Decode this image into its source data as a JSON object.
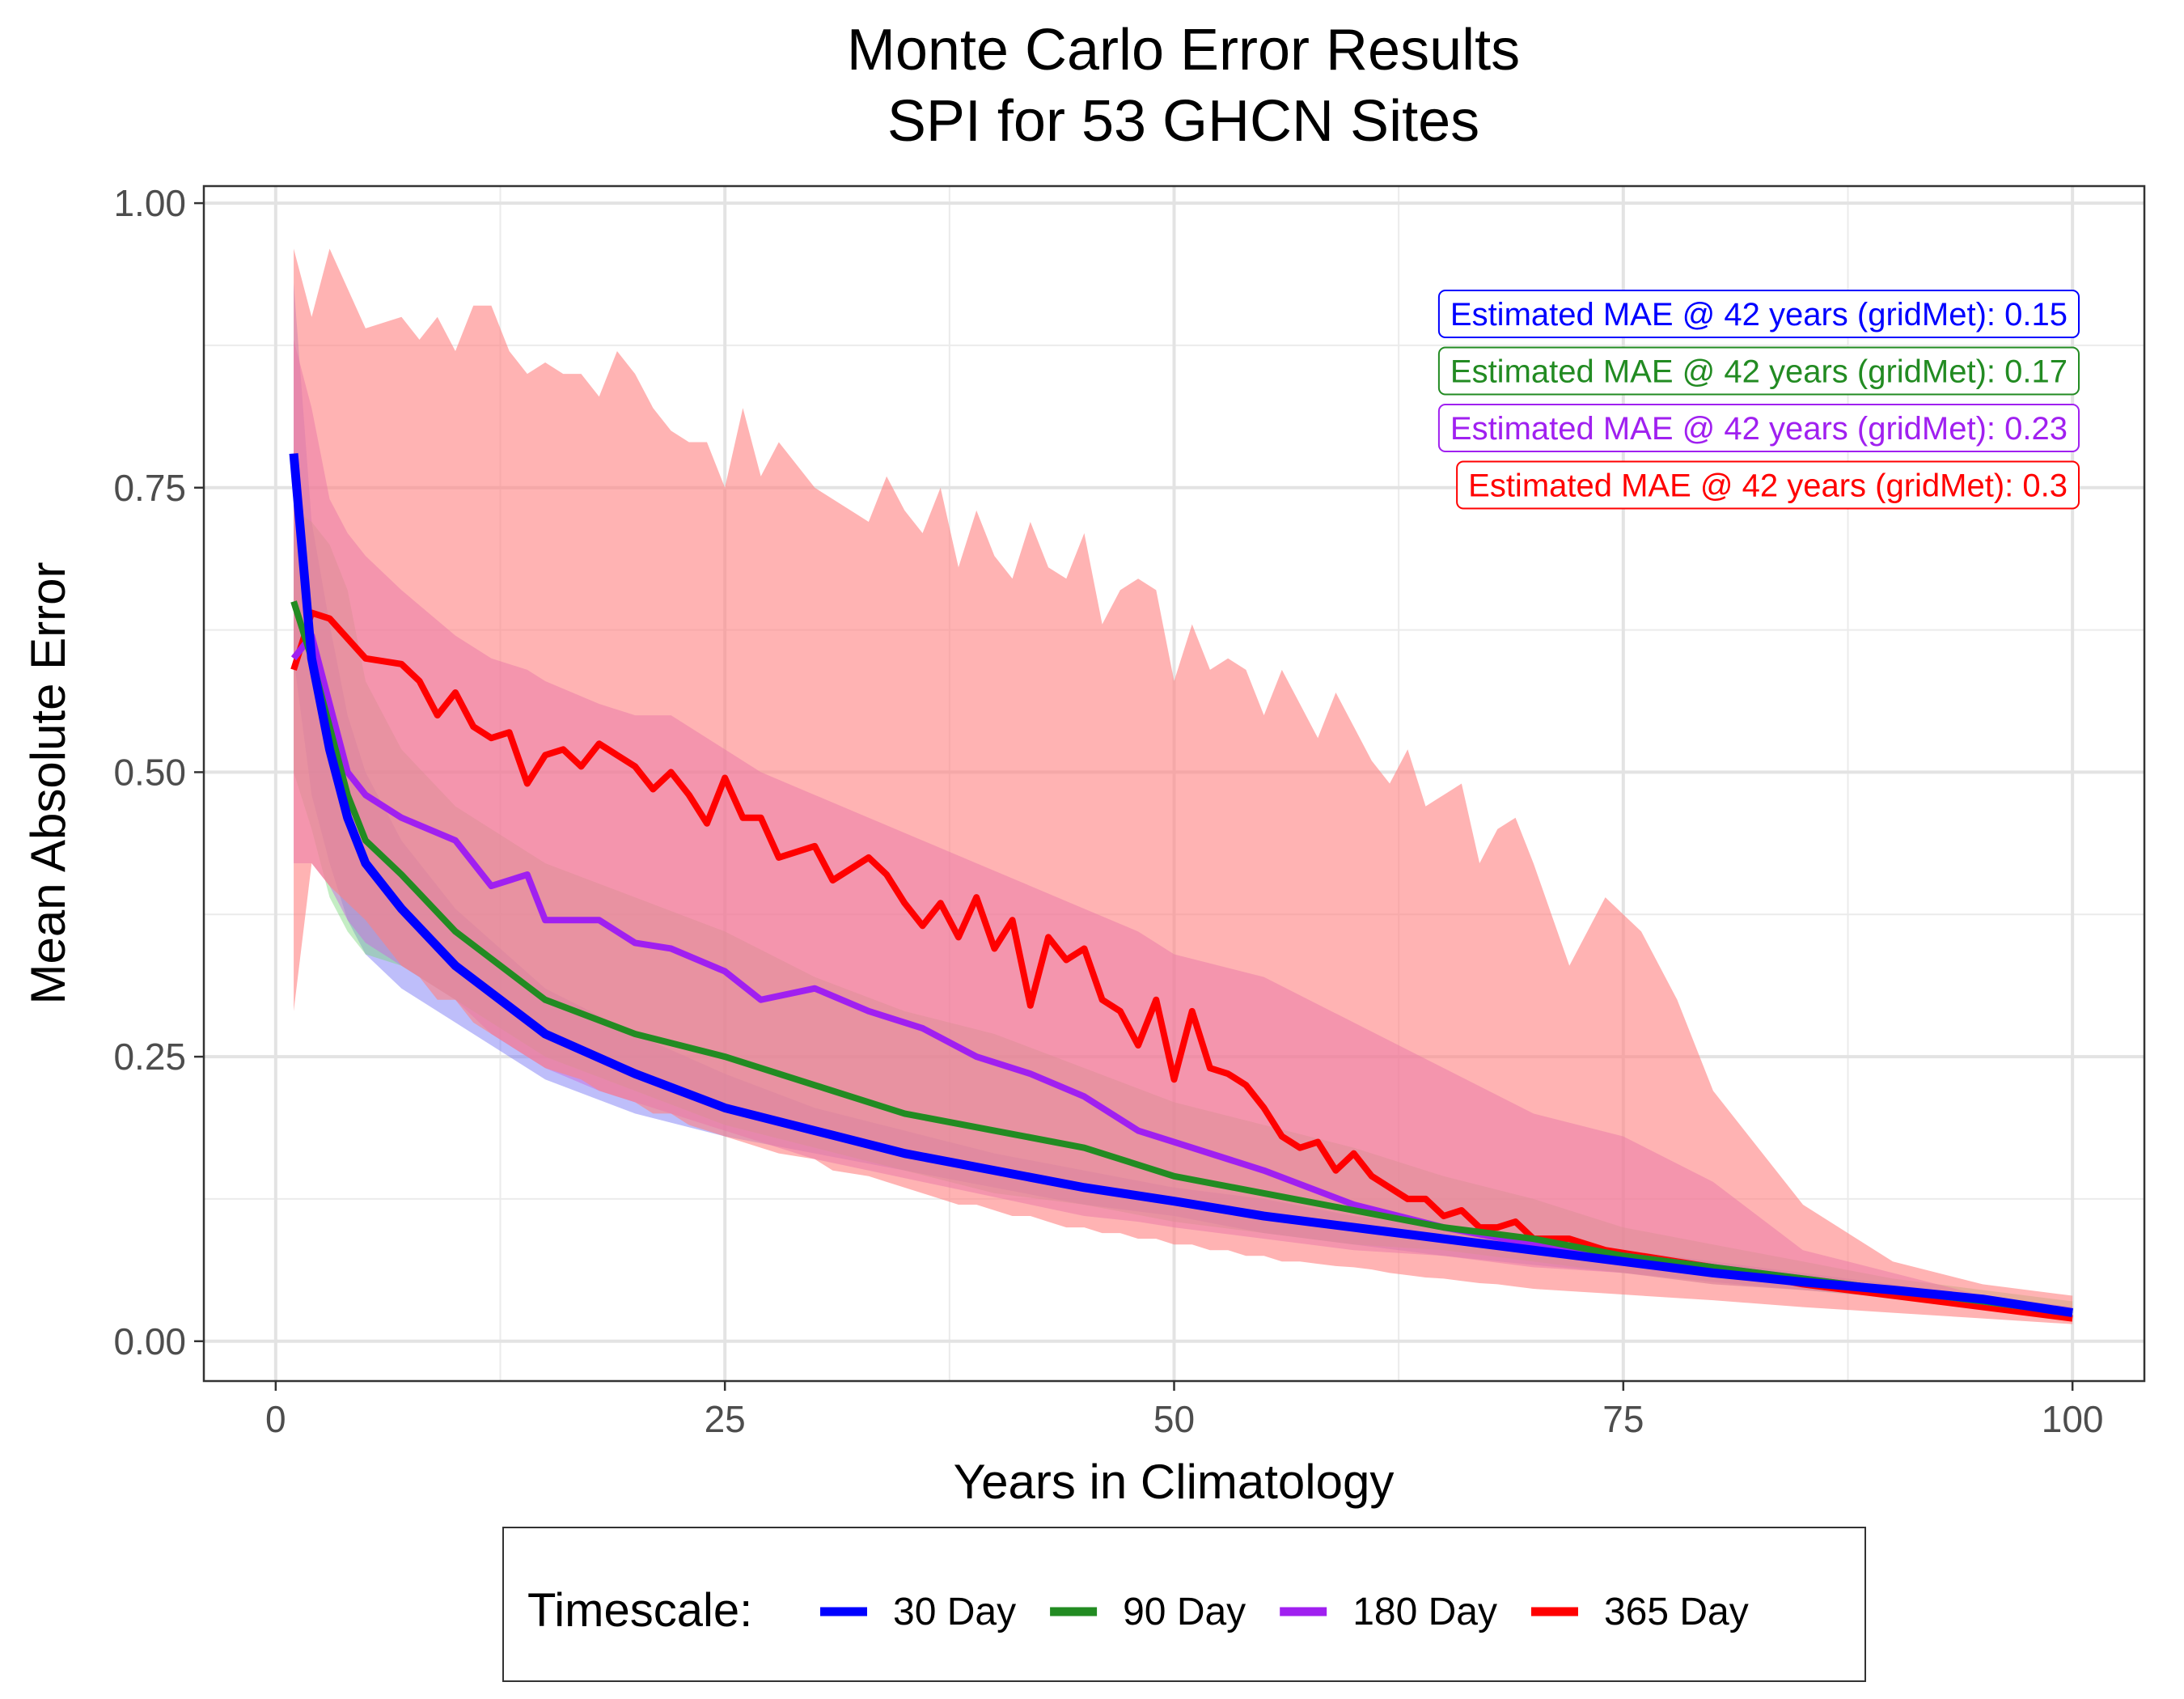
{
  "chart_data": {
    "type": "line",
    "title_line1": "Monte Carlo Error Results",
    "title_line2": "SPI for 53 GHCN Sites",
    "xlabel": "Years in Climatology",
    "ylabel": "Mean Absolute Error",
    "xlim": [
      -4,
      104
    ],
    "ylim": [
      -0.035,
      1.015
    ],
    "xticks": [
      0,
      25,
      50,
      75,
      100
    ],
    "xtick_labels": [
      "0",
      "25",
      "50",
      "75",
      "100"
    ],
    "yticks": [
      0,
      0.25,
      0.5,
      0.75,
      1.0
    ],
    "ytick_labels": [
      "0.00",
      "0.25",
      "0.50",
      "0.75",
      "1.00"
    ],
    "grid": true,
    "legend_title": "Timescale:",
    "legend_position": "bottom",
    "annotations": [
      {
        "text": "Estimated MAE @ 42 years (gridMet): 0.15",
        "color": "#0000ff"
      },
      {
        "text": "Estimated MAE @ 42 years (gridMet): 0.17",
        "color": "#228b22"
      },
      {
        "text": "Estimated MAE @ 42 years (gridMet): 0.23",
        "color": "#a020f0"
      },
      {
        "text": "Estimated MAE @ 42 years (gridMet): 0.3",
        "color": "#ff0000"
      }
    ],
    "series": [
      {
        "name": "30 Day",
        "line_color": "#0000ff",
        "band_color": "#6f6ff5",
        "band_opacity": 0.45,
        "x": [
          1,
          2,
          3,
          4,
          5,
          7,
          10,
          15,
          20,
          25,
          30,
          35,
          40,
          45,
          50,
          55,
          60,
          65,
          70,
          75,
          80,
          85,
          90,
          95,
          100
        ],
        "mean": [
          0.78,
          0.6,
          0.52,
          0.46,
          0.42,
          0.38,
          0.33,
          0.27,
          0.235,
          0.205,
          0.185,
          0.165,
          0.15,
          0.135,
          0.123,
          0.11,
          0.1,
          0.09,
          0.08,
          0.07,
          0.06,
          0.052,
          0.045,
          0.037,
          0.025
        ],
        "lower": [
          0.6,
          0.48,
          0.42,
          0.37,
          0.34,
          0.31,
          0.28,
          0.23,
          0.2,
          0.18,
          0.165,
          0.15,
          0.135,
          0.12,
          0.11,
          0.095,
          0.085,
          0.075,
          0.067,
          0.06,
          0.052,
          0.045,
          0.038,
          0.03,
          0.02
        ],
        "upper": [
          0.93,
          0.72,
          0.63,
          0.55,
          0.5,
          0.44,
          0.38,
          0.31,
          0.27,
          0.235,
          0.205,
          0.185,
          0.165,
          0.15,
          0.135,
          0.125,
          0.11,
          0.1,
          0.09,
          0.08,
          0.07,
          0.06,
          0.05,
          0.04,
          0.03
        ]
      },
      {
        "name": "90 Day",
        "line_color": "#228b22",
        "band_color": "#7cd67c",
        "band_opacity": 0.45,
        "x": [
          1,
          2,
          3,
          4,
          5,
          7,
          10,
          15,
          20,
          25,
          30,
          35,
          40,
          45,
          50,
          55,
          60,
          65,
          70,
          75,
          80,
          85,
          90,
          95,
          100
        ],
        "mean": [
          0.65,
          0.6,
          0.54,
          0.48,
          0.44,
          0.41,
          0.36,
          0.3,
          0.27,
          0.25,
          0.225,
          0.2,
          0.185,
          0.17,
          0.145,
          0.13,
          0.115,
          0.1,
          0.09,
          0.075,
          0.065,
          0.055,
          0.045,
          0.035,
          0.025
        ],
        "lower": [
          0.5,
          0.45,
          0.39,
          0.36,
          0.34,
          0.33,
          0.3,
          0.25,
          0.22,
          0.19,
          0.17,
          0.15,
          0.13,
          0.12,
          0.105,
          0.095,
          0.085,
          0.08,
          0.07,
          0.06,
          0.05,
          0.045,
          0.038,
          0.03,
          0.02
        ],
        "upper": [
          0.73,
          0.72,
          0.7,
          0.66,
          0.58,
          0.52,
          0.47,
          0.42,
          0.39,
          0.36,
          0.32,
          0.29,
          0.27,
          0.24,
          0.21,
          0.19,
          0.17,
          0.145,
          0.125,
          0.1,
          0.085,
          0.07,
          0.055,
          0.045,
          0.035
        ]
      },
      {
        "name": "180 Day",
        "line_color": "#a020f0",
        "band_color": "#c86be0",
        "band_opacity": 0.5,
        "x": [
          1,
          2,
          3,
          4,
          5,
          7,
          10,
          12,
          14,
          15,
          18,
          20,
          22,
          25,
          27,
          30,
          33,
          36,
          39,
          42,
          45,
          48,
          50,
          55,
          60,
          65,
          70,
          75,
          80,
          85,
          90,
          95,
          100
        ],
        "mean": [
          0.6,
          0.62,
          0.56,
          0.5,
          0.48,
          0.46,
          0.44,
          0.4,
          0.41,
          0.37,
          0.37,
          0.35,
          0.345,
          0.325,
          0.3,
          0.31,
          0.29,
          0.275,
          0.25,
          0.235,
          0.215,
          0.185,
          0.175,
          0.15,
          0.12,
          0.1,
          0.085,
          0.075,
          0.065,
          0.055,
          0.045,
          0.035,
          0.025
        ],
        "lower": [
          0.42,
          0.42,
          0.4,
          0.37,
          0.35,
          0.33,
          0.3,
          0.27,
          0.25,
          0.24,
          0.22,
          0.21,
          0.2,
          0.185,
          0.175,
          0.16,
          0.15,
          0.14,
          0.13,
          0.12,
          0.11,
          0.105,
          0.1,
          0.09,
          0.08,
          0.075,
          0.065,
          0.06,
          0.05,
          0.045,
          0.04,
          0.03,
          0.02
        ],
        "upper": [
          0.88,
          0.82,
          0.74,
          0.71,
          0.69,
          0.66,
          0.62,
          0.6,
          0.59,
          0.58,
          0.56,
          0.55,
          0.55,
          0.52,
          0.5,
          0.48,
          0.46,
          0.44,
          0.42,
          0.4,
          0.38,
          0.36,
          0.34,
          0.32,
          0.28,
          0.24,
          0.2,
          0.18,
          0.14,
          0.08,
          0.06,
          0.04,
          0.03
        ]
      },
      {
        "name": "365 Day",
        "line_color": "#ff0000",
        "band_color": "#ff8080",
        "band_opacity": 0.6,
        "x": [
          1,
          2,
          3,
          5,
          7,
          8,
          9,
          10,
          11,
          12,
          13,
          14,
          15,
          16,
          17,
          18,
          19,
          20,
          21,
          22,
          23,
          24,
          25,
          26,
          27,
          28,
          30,
          31,
          33,
          34,
          35,
          36,
          37,
          38,
          39,
          40,
          41,
          42,
          43,
          44,
          45,
          46,
          47,
          48,
          49,
          50,
          51,
          52,
          53,
          54,
          55,
          56,
          57,
          58,
          59,
          60,
          61,
          62,
          63,
          64,
          65,
          66,
          67,
          68,
          69,
          70,
          72,
          74,
          76,
          78,
          80,
          85,
          90,
          95,
          100
        ],
        "mean": [
          0.59,
          0.64,
          0.635,
          0.6,
          0.595,
          0.58,
          0.55,
          0.57,
          0.54,
          0.53,
          0.535,
          0.49,
          0.515,
          0.52,
          0.505,
          0.525,
          0.515,
          0.505,
          0.485,
          0.5,
          0.48,
          0.455,
          0.495,
          0.46,
          0.46,
          0.425,
          0.435,
          0.405,
          0.425,
          0.41,
          0.385,
          0.365,
          0.385,
          0.355,
          0.39,
          0.345,
          0.37,
          0.295,
          0.355,
          0.335,
          0.345,
          0.3,
          0.29,
          0.26,
          0.3,
          0.23,
          0.29,
          0.24,
          0.235,
          0.225,
          0.205,
          0.18,
          0.17,
          0.175,
          0.15,
          0.165,
          0.145,
          0.135,
          0.125,
          0.125,
          0.11,
          0.115,
          0.1,
          0.1,
          0.105,
          0.09,
          0.09,
          0.08,
          0.075,
          0.07,
          0.065,
          0.05,
          0.04,
          0.03,
          0.02
        ],
        "lower": [
          0.29,
          0.42,
          0.4,
          0.37,
          0.33,
          0.32,
          0.3,
          0.3,
          0.28,
          0.27,
          0.26,
          0.25,
          0.24,
          0.235,
          0.23,
          0.22,
          0.215,
          0.21,
          0.2,
          0.2,
          0.19,
          0.185,
          0.18,
          0.175,
          0.17,
          0.165,
          0.16,
          0.15,
          0.145,
          0.14,
          0.135,
          0.13,
          0.125,
          0.12,
          0.12,
          0.115,
          0.11,
          0.11,
          0.105,
          0.1,
          0.1,
          0.095,
          0.095,
          0.09,
          0.09,
          0.085,
          0.085,
          0.08,
          0.08,
          0.075,
          0.075,
          0.07,
          0.07,
          0.068,
          0.066,
          0.065,
          0.063,
          0.06,
          0.058,
          0.056,
          0.055,
          0.053,
          0.051,
          0.05,
          0.048,
          0.046,
          0.044,
          0.042,
          0.04,
          0.038,
          0.036,
          0.03,
          0.025,
          0.02,
          0.015
        ],
        "upper": [
          0.96,
          0.9,
          0.96,
          0.89,
          0.9,
          0.88,
          0.9,
          0.87,
          0.91,
          0.91,
          0.87,
          0.85,
          0.86,
          0.85,
          0.85,
          0.83,
          0.87,
          0.85,
          0.82,
          0.8,
          0.79,
          0.79,
          0.75,
          0.82,
          0.76,
          0.79,
          0.75,
          0.74,
          0.72,
          0.76,
          0.73,
          0.71,
          0.75,
          0.68,
          0.73,
          0.69,
          0.67,
          0.72,
          0.68,
          0.67,
          0.71,
          0.63,
          0.66,
          0.67,
          0.66,
          0.58,
          0.63,
          0.59,
          0.6,
          0.59,
          0.55,
          0.59,
          0.56,
          0.53,
          0.57,
          0.54,
          0.51,
          0.49,
          0.52,
          0.47,
          0.48,
          0.49,
          0.42,
          0.45,
          0.46,
          0.42,
          0.33,
          0.39,
          0.36,
          0.3,
          0.22,
          0.12,
          0.07,
          0.05,
          0.04
        ]
      }
    ]
  }
}
